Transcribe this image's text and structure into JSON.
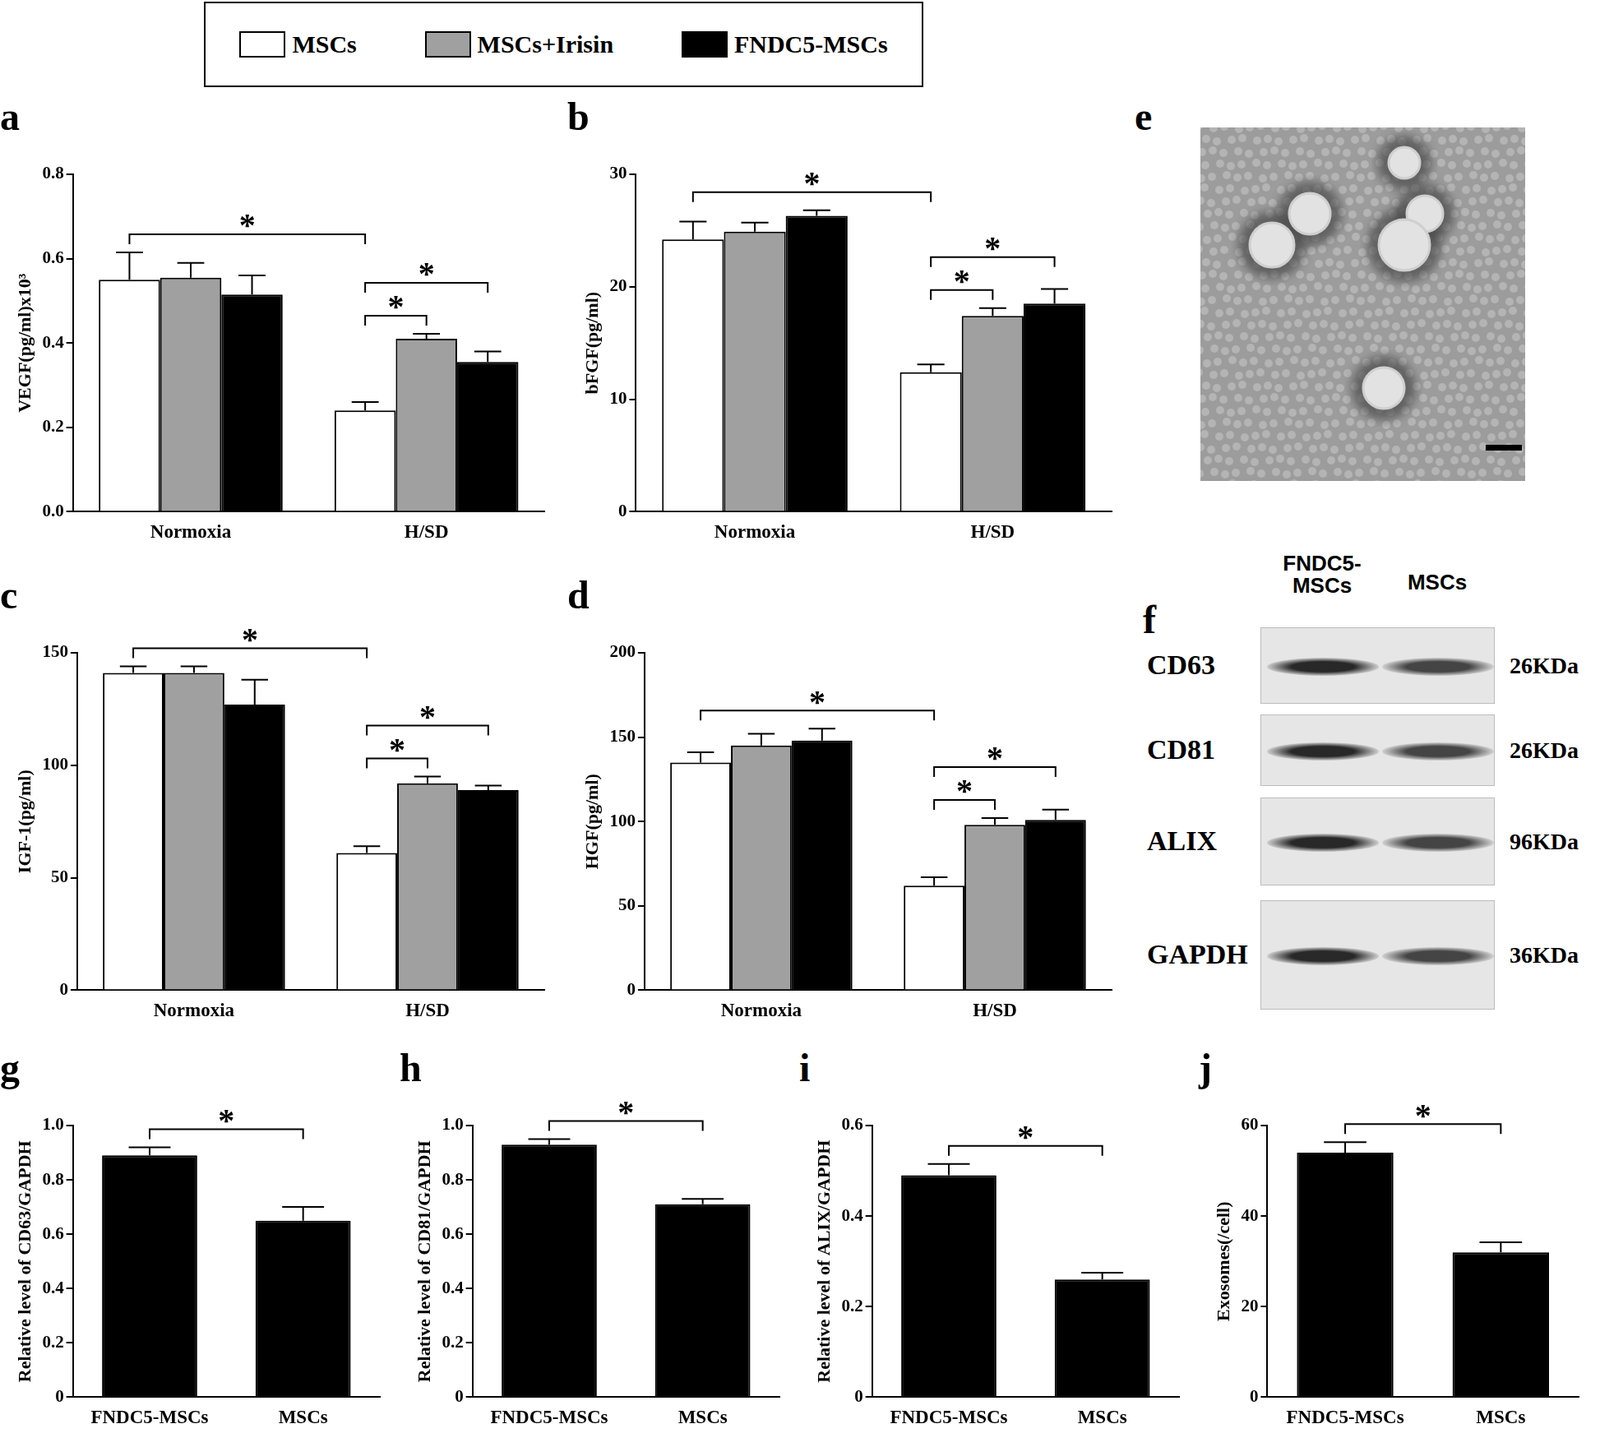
{
  "chart_data": [
    {
      "title": "a",
      "type": "bar",
      "legend": "top",
      "y_label": "VEGF(pg/ml)x10³",
      "categories": [
        "Normoxia",
        "H/SD"
      ],
      "series": [
        {
          "name": "MSCs",
          "color": "#ffffff",
          "values": [
            0.55,
            0.24
          ],
          "errors": [
            0.065,
            0.02
          ]
        },
        {
          "name": "MSCs+Irisin",
          "color": "#a0a0a0",
          "values": [
            0.555,
            0.41
          ],
          "errors": [
            0.035,
            0.012
          ]
        },
        {
          "name": "FNDC5-MSCs",
          "color": "#000000",
          "values": [
            0.515,
            0.355
          ],
          "errors": [
            0.045,
            0.025
          ]
        }
      ],
      "ylim": [
        0,
        0.8
      ],
      "yticks": [
        {
          "value": 0,
          "label": "0.0"
        },
        0.2,
        0.4,
        0.6,
        0.8
      ],
      "significance": [
        {
          "from": [
            "Normoxia",
            "MSCs"
          ],
          "to": [
            "H/SD",
            "MSCs"
          ],
          "label": "*"
        },
        {
          "from": [
            "H/SD",
            "MSCs"
          ],
          "to": [
            "H/SD",
            "MSCs+Irisin"
          ],
          "label": "*"
        },
        {
          "from": [
            "H/SD",
            "MSCs"
          ],
          "to": [
            "H/SD",
            "FNDC5-MSCs"
          ],
          "label": "*"
        }
      ]
    },
    {
      "title": "b",
      "type": "bar",
      "y_label": "bFGF(pg/ml)",
      "categories": [
        "Normoxia",
        "H/SD"
      ],
      "series": [
        {
          "name": "MSCs",
          "color": "#ffffff",
          "values": [
            24.2,
            12.4
          ],
          "errors": [
            1.6,
            0.7
          ]
        },
        {
          "name": "MSCs+Irisin",
          "color": "#a0a0a0",
          "values": [
            24.9,
            17.4
          ],
          "errors": [
            0.8,
            0.7
          ]
        },
        {
          "name": "FNDC5-MSCs",
          "color": "#000000",
          "values": [
            26.3,
            18.5
          ],
          "errors": [
            0.5,
            1.3
          ]
        }
      ],
      "ylim": [
        0,
        30
      ],
      "yticks": [
        0,
        10,
        20,
        30
      ],
      "significance": [
        {
          "from": [
            "Normoxia",
            "MSCs"
          ],
          "to": [
            "H/SD",
            "MSCs"
          ],
          "label": "*"
        },
        {
          "from": [
            "H/SD",
            "MSCs"
          ],
          "to": [
            "H/SD",
            "MSCs+Irisin"
          ],
          "label": "*"
        },
        {
          "from": [
            "H/SD",
            "MSCs"
          ],
          "to": [
            "H/SD",
            "FNDC5-MSCs"
          ],
          "label": "*"
        }
      ]
    },
    {
      "title": "c",
      "type": "bar",
      "y_label": "IGF-1(pg/ml)",
      "categories": [
        "Normoxia",
        "H/SD"
      ],
      "series": [
        {
          "name": "MSCs",
          "color": "#ffffff",
          "values": [
            141,
            61
          ],
          "errors": [
            3,
            3
          ]
        },
        {
          "name": "MSCs+Irisin",
          "color": "#a0a0a0",
          "values": [
            141,
            92
          ],
          "errors": [
            3,
            3
          ]
        },
        {
          "name": "FNDC5-MSCs",
          "color": "#000000",
          "values": [
            127,
            89
          ],
          "errors": [
            11,
            2
          ]
        }
      ],
      "ylim": [
        0,
        150
      ],
      "yticks": [
        0,
        50,
        100,
        150
      ],
      "significance": [
        {
          "from": [
            "Normoxia",
            "MSCs"
          ],
          "to": [
            "H/SD",
            "MSCs"
          ],
          "label": "*"
        },
        {
          "from": [
            "H/SD",
            "MSCs"
          ],
          "to": [
            "H/SD",
            "MSCs+Irisin"
          ],
          "label": "*"
        },
        {
          "from": [
            "H/SD",
            "MSCs"
          ],
          "to": [
            "H/SD",
            "FNDC5-MSCs"
          ],
          "label": "*"
        }
      ]
    },
    {
      "title": "d",
      "type": "bar",
      "y_label": "HGF(pg/ml)",
      "categories": [
        "Normoxia",
        "H/SD"
      ],
      "series": [
        {
          "name": "MSCs",
          "color": "#ffffff",
          "values": [
            135,
            62
          ],
          "errors": [
            6,
            5
          ]
        },
        {
          "name": "MSCs+Irisin",
          "color": "#a0a0a0",
          "values": [
            145,
            98
          ],
          "errors": [
            7,
            4
          ]
        },
        {
          "name": "FNDC5-MSCs",
          "color": "#000000",
          "values": [
            148,
            101
          ],
          "errors": [
            7,
            6
          ]
        }
      ],
      "ylim": [
        0,
        200
      ],
      "yticks": [
        0,
        50,
        100,
        150,
        200
      ],
      "significance": [
        {
          "from": [
            "Normoxia",
            "MSCs"
          ],
          "to": [
            "H/SD",
            "MSCs"
          ],
          "label": "*"
        },
        {
          "from": [
            "H/SD",
            "MSCs"
          ],
          "to": [
            "H/SD",
            "MSCs+Irisin"
          ],
          "label": "*"
        },
        {
          "from": [
            "H/SD",
            "MSCs"
          ],
          "to": [
            "H/SD",
            "FNDC5-MSCs"
          ],
          "label": "*"
        }
      ]
    },
    {
      "title": "g",
      "type": "bar",
      "y_label": "Relative level of CD63/GAPDH",
      "categories": [
        "FNDC5-MSCs",
        "MSCs"
      ],
      "values": [
        0.89,
        0.65
      ],
      "errors": [
        0.03,
        0.05
      ],
      "color": "#000000",
      "ylim": [
        0,
        1.0
      ],
      "yticks": [
        0,
        0.2,
        0.4,
        0.6,
        0.8,
        {
          "value": 1.0,
          "label": "1.0"
        }
      ],
      "significance": [
        {
          "from": "FNDC5-MSCs",
          "to": "MSCs",
          "label": "*"
        }
      ]
    },
    {
      "title": "h",
      "type": "bar",
      "y_label": "Relative level of CD81/GAPDH",
      "categories": [
        "FNDC5-MSCs",
        "MSCs"
      ],
      "values": [
        0.93,
        0.71
      ],
      "errors": [
        0.02,
        0.02
      ],
      "color": "#000000",
      "ylim": [
        0,
        1.0
      ],
      "yticks": [
        0,
        0.2,
        0.4,
        0.6,
        0.8,
        {
          "value": 1.0,
          "label": "1.0"
        }
      ],
      "significance": [
        {
          "from": "FNDC5-MSCs",
          "to": "MSCs",
          "label": "*"
        }
      ]
    },
    {
      "title": "i",
      "type": "bar",
      "y_label": "Relative level of ALIX/GAPDH",
      "categories": [
        "FNDC5-MSCs",
        "MSCs"
      ],
      "values": [
        0.49,
        0.26
      ],
      "errors": [
        0.025,
        0.015
      ],
      "color": "#000000",
      "ylim": [
        0,
        0.6
      ],
      "yticks": [
        0,
        0.2,
        0.4,
        0.6
      ],
      "significance": [
        {
          "from": "FNDC5-MSCs",
          "to": "MSCs",
          "label": "*"
        }
      ]
    },
    {
      "title": "j",
      "type": "bar",
      "y_label": "Exosomes(/cell)",
      "categories": [
        "FNDC5-MSCs",
        "MSCs"
      ],
      "values": [
        54,
        32
      ],
      "errors": [
        2.3,
        2.2
      ],
      "color": "#000000",
      "ylim": [
        0,
        60
      ],
      "yticks": [
        0,
        20,
        40,
        60
      ],
      "significance": [
        {
          "from": "FNDC5-MSCs",
          "to": "MSCs",
          "label": "*"
        }
      ]
    }
  ],
  "micrograph": {
    "title": "e"
  },
  "blot": {
    "title": "f",
    "columns": [
      "FNDC5-MSCs",
      "MSCs"
    ],
    "rows": [
      {
        "label": "CD63",
        "size": "26KDa"
      },
      {
        "label": "CD81",
        "size": "26KDa"
      },
      {
        "label": "ALIX",
        "size": "96KDa"
      },
      {
        "label": "GAPDH",
        "size": "36KDa"
      }
    ]
  }
}
